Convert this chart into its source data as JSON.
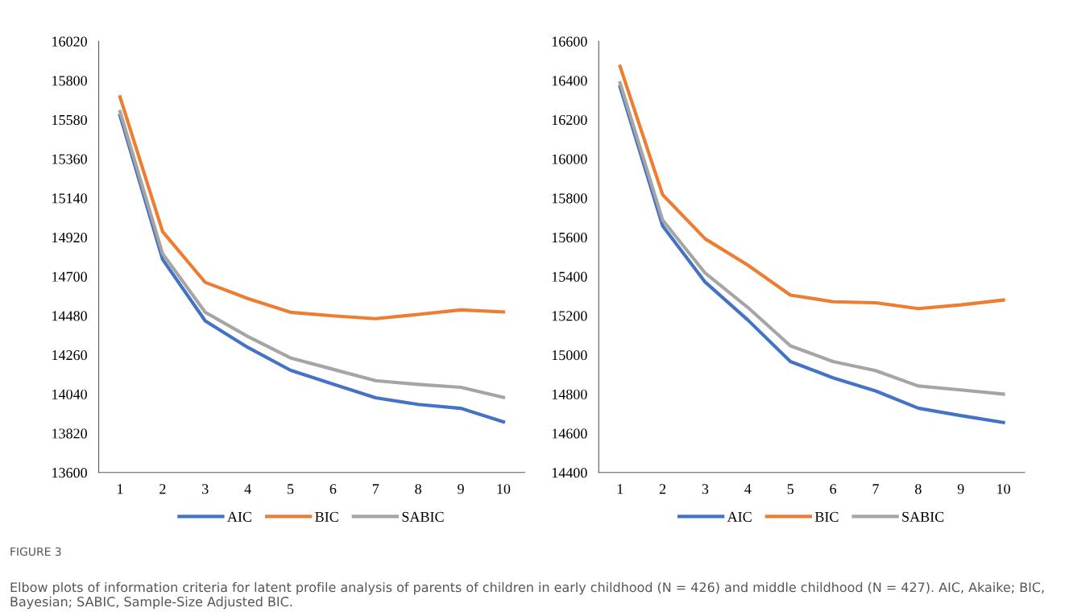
{
  "chart_data": [
    {
      "type": "line",
      "categories": [
        "1",
        "2",
        "3",
        "4",
        "5",
        "6",
        "7",
        "8",
        "9",
        "10"
      ],
      "ylim": [
        13600,
        16020
      ],
      "yticks": [
        13600,
        13820,
        14040,
        14260,
        14480,
        14700,
        14920,
        15140,
        15360,
        15580,
        15800,
        16020
      ],
      "legend": "bottom",
      "grid": false,
      "series": [
        {
          "name": "AIC",
          "color": "#4472c4",
          "values": [
            15604,
            14796,
            14451,
            14302,
            14174,
            14096,
            14019,
            13982,
            13960,
            13884
          ]
        },
        {
          "name": "BIC",
          "color": "#ed7d31",
          "values": [
            15708,
            14952,
            14667,
            14576,
            14499,
            14479,
            14463,
            14487,
            14512,
            14501
          ]
        },
        {
          "name": "SABIC",
          "color": "#a5a5a5",
          "values": [
            15625,
            14828,
            14499,
            14363,
            14243,
            14179,
            14115,
            14094,
            14078,
            14021
          ]
        }
      ]
    },
    {
      "type": "line",
      "categories": [
        "1",
        "2",
        "3",
        "4",
        "5",
        "6",
        "7",
        "8",
        "9",
        "10"
      ],
      "ylim": [
        14400,
        16600
      ],
      "yticks": [
        14400,
        14600,
        14800,
        15000,
        15200,
        15400,
        15600,
        15800,
        16000,
        16200,
        16400,
        16600
      ],
      "legend": "bottom",
      "grid": false,
      "series": [
        {
          "name": "AIC",
          "color": "#4472c4",
          "values": [
            16367,
            15658,
            15371,
            15178,
            14966,
            14883,
            14816,
            14728,
            14690,
            14655
          ]
        },
        {
          "name": "BIC",
          "color": "#ed7d31",
          "values": [
            16472,
            15817,
            15592,
            15458,
            15305,
            15271,
            15266,
            15236,
            15255,
            15280
          ]
        },
        {
          "name": "SABIC",
          "color": "#a5a5a5",
          "values": [
            16388,
            15688,
            15417,
            15242,
            15046,
            14966,
            14920,
            14841,
            14821,
            14800
          ]
        }
      ],
      "annotations": [
        "FIGURE 3",
        "Elbow plots of information criteria for latent profile analysis of parents of children in early childhood (N = 426) and middle childhood (N = 427). AIC, Akaike; BIC, Bayesian; SABIC, Sample-Size Adjusted BIC."
      ]
    }
  ]
}
